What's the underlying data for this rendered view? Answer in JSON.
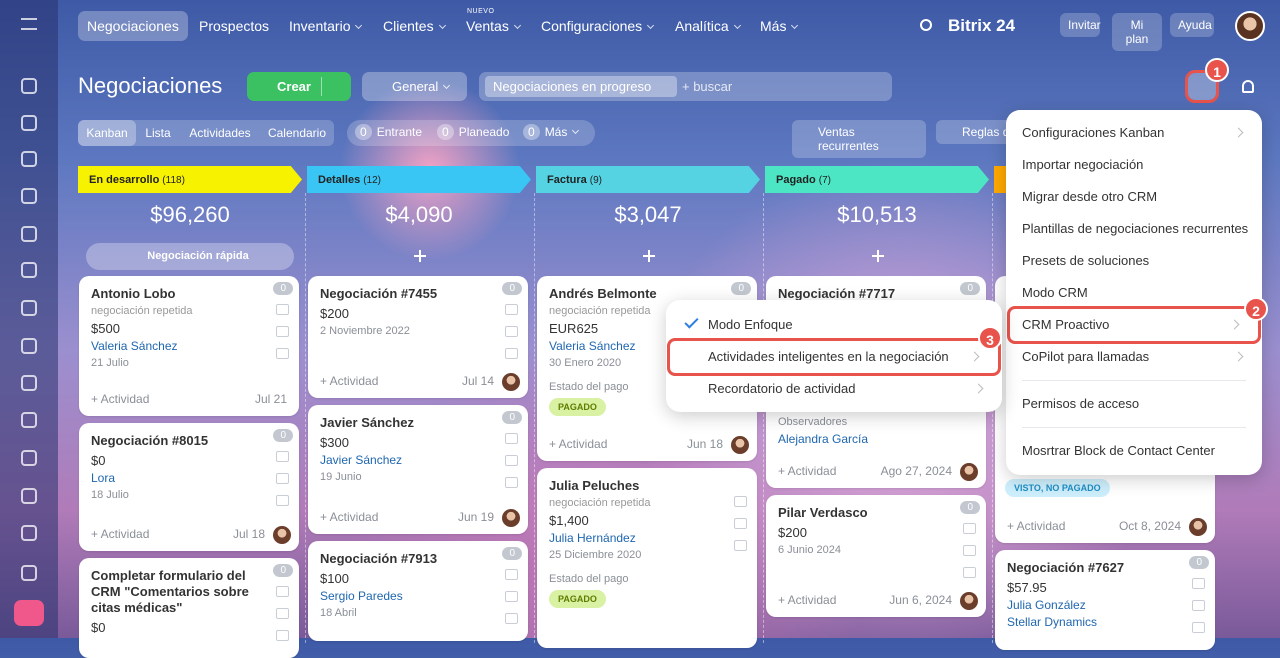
{
  "nav": {
    "items": [
      "Negociaciones",
      "Prospectos",
      "Inventario",
      "Clientes",
      "Ventas",
      "Configuraciones",
      "Analítica",
      "Más"
    ],
    "new_badge": "NUEVO",
    "brand": "Bitrix 24",
    "buttons": [
      "Invitar",
      "Mi plan",
      "Ayuda"
    ]
  },
  "header": {
    "title": "Negociaciones",
    "create": "Crear",
    "filter": "General",
    "search_tag": "Negociaciones en progreso",
    "search_placeholder": "+ buscar"
  },
  "toolbar": {
    "views": [
      "Kanban",
      "Lista",
      "Actividades",
      "Calendario"
    ],
    "counters": [
      {
        "count": "0",
        "label": "Entrante"
      },
      {
        "count": "0",
        "label": "Planeado"
      },
      {
        "count": "0",
        "label": "Más"
      }
    ],
    "recurring": "Ventas recurrentes",
    "rules": "Reglas d"
  },
  "columns": [
    {
      "name": "En desarrollo",
      "count": "(118)",
      "color": "#f7f200",
      "total": "$96,260",
      "quick": "Negociación rápida",
      "cards": [
        {
          "title": "Antonio Lobo",
          "subtitle": "negociación repetida",
          "amount": "$500",
          "contact": "Valeria Sánchez",
          "date": "21 Julio",
          "activity": "+ Actividad",
          "activity_date": "Jul 21",
          "count": "0"
        },
        {
          "title": "Negociación #8015",
          "amount": "$0",
          "contact": "Lora",
          "date": "18 Julio",
          "activity": "+ Actividad",
          "activity_date": "Jul 18",
          "count": "0"
        },
        {
          "title": "Completar formulario del CRM \"Comentarios sobre citas médicas\"",
          "amount": "$0",
          "count": "0"
        }
      ]
    },
    {
      "name": "Detalles",
      "count": "(12)",
      "color": "#39c6f4",
      "total": "$4,090",
      "cards": [
        {
          "title": "Negociación #7455",
          "amount": "$200",
          "date": "2 Noviembre 2022",
          "activity": "+ Actividad",
          "activity_date": "Jul 14",
          "count": "0"
        },
        {
          "title": "Javier Sánchez",
          "amount": "$300",
          "contact": "Javier Sánchez",
          "date": "19 Junio",
          "activity": "+ Actividad",
          "activity_date": "Jun 19",
          "count": "0"
        },
        {
          "title": "Negociación #7913",
          "amount": "$100",
          "contact": "Sergio Paredes",
          "date": "18 Abril",
          "count": "0"
        }
      ]
    },
    {
      "name": "Factura",
      "count": "(9)",
      "color": "#55d3e3",
      "total": "$3,047",
      "cards": [
        {
          "title": "Andrés Belmonte",
          "subtitle": "negociación repetida",
          "amount": "EUR625",
          "contact": "Valeria Sánchez",
          "date": "30 Enero 2020",
          "status_label": "Estado del pago",
          "status": "PAGADO",
          "activity": "+ Actividad",
          "activity_date": "Jun 18",
          "count": "0"
        },
        {
          "title": "Julia Peluches",
          "subtitle": "negociación repetida",
          "amount": "$1,400",
          "contact": "Julia Hernández",
          "date": "25 Diciembre 2020",
          "status_label": "Estado del pago",
          "status": "PAGADO"
        }
      ]
    },
    {
      "name": "Pagado",
      "count": "(7)",
      "color": "#4de6c4",
      "total": "$10,513",
      "cards": [
        {
          "title": "Negociación #7717",
          "observers_label": "Observadores",
          "observer": "Alejandra García",
          "activity": "+ Actividad",
          "activity_date": "Ago 27, 2024",
          "count": "0"
        },
        {
          "title": "Pilar Verdasco",
          "amount": "$200",
          "date": "6 Junio 2024",
          "activity": "+ Actividad",
          "activity_date": "Jun 6, 2024",
          "count": "0"
        }
      ]
    },
    {
      "name": "",
      "count": "",
      "color": "#ffa900",
      "total": "",
      "cards": [
        {
          "status": "VISTO, NO PAGADO",
          "activity": "+ Actividad",
          "activity_date": "Oct 8, 2024"
        },
        {
          "title": "Negociación #7627",
          "amount": "$57.95",
          "contact": "Julia González",
          "contact2": "Stellar Dynamics",
          "count": "0"
        }
      ]
    }
  ],
  "settings_menu": {
    "groups": [
      [
        {
          "label": "Configuraciones Kanban",
          "submenu": true
        },
        {
          "label": "Importar negociación"
        },
        {
          "label": "Migrar desde otro CRM"
        },
        {
          "label": "Plantillas de negociaciones recurrentes"
        },
        {
          "label": "Presets de soluciones"
        },
        {
          "label": "Modo CRM"
        },
        {
          "label": "CRM Proactivo",
          "submenu": true,
          "highlighted": true
        },
        {
          "label": "CoPilot para llamadas",
          "submenu": true
        }
      ],
      [
        {
          "label": "Permisos de acceso"
        }
      ],
      [
        {
          "label": "Mosrtrar Block de Contact Center"
        }
      ]
    ]
  },
  "submenu": {
    "items": [
      {
        "label": "Modo Enfoque",
        "checked": true
      },
      {
        "label": "Actividades inteligentes en la negociación",
        "submenu": true,
        "highlighted": true
      },
      {
        "label": "Recordatorio de actividad",
        "submenu": true
      }
    ]
  },
  "callouts": [
    "1",
    "2",
    "3"
  ]
}
